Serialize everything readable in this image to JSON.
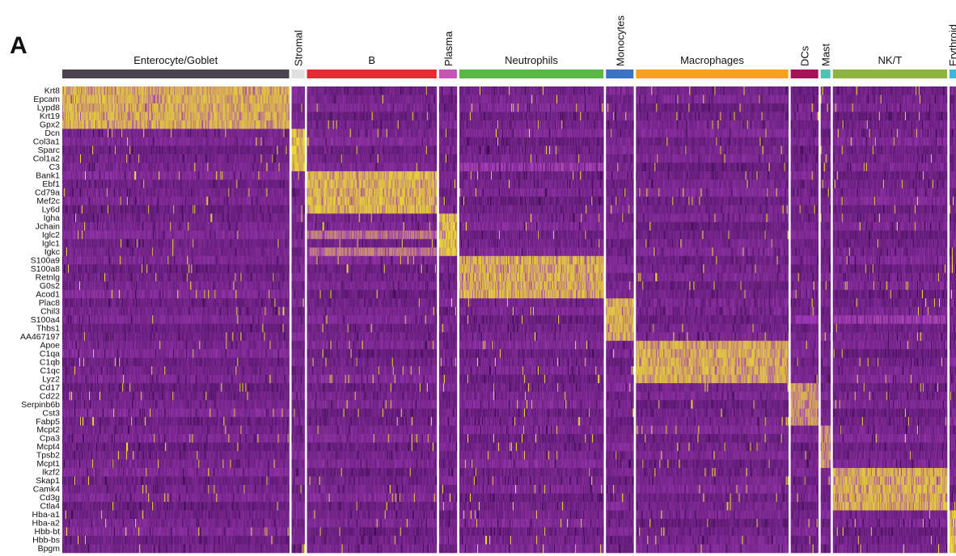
{
  "panel_label": "A",
  "chart_data": {
    "type": "heatmap",
    "title": "",
    "xlabel": "",
    "ylabel": "",
    "legend": "none",
    "groups": [
      {
        "name": "Enterocyte/Goblet",
        "color": "#4b4350",
        "cells": 280
      },
      {
        "name": "Stromal",
        "color": "#e0e0e0",
        "cells": 16
      },
      {
        "name": "B",
        "color": "#e32b31",
        "cells": 160
      },
      {
        "name": "Plasma",
        "color": "#c455b5",
        "cells": 22
      },
      {
        "name": "Neutrophils",
        "color": "#5cb844",
        "cells": 178
      },
      {
        "name": "Monocytes",
        "color": "#3a73c4",
        "cells": 34
      },
      {
        "name": "Macrophages",
        "color": "#f7a11f",
        "cells": 188
      },
      {
        "name": "DCs",
        "color": "#a5135a",
        "cells": 34
      },
      {
        "name": "Mast",
        "color": "#4ec3b3",
        "cells": 12
      },
      {
        "name": "NK/T",
        "color": "#8db340",
        "cells": 141
      },
      {
        "name": "Erythroid",
        "color": "#3fb6d6",
        "cells": 8
      }
    ],
    "genes": [
      "Krt8",
      "Epcam",
      "Lypd8",
      "Krt19",
      "Gpx2",
      "Dcn",
      "Col3a1",
      "Sparc",
      "Col1a2",
      "C3",
      "Bank1",
      "Ebf1",
      "Cd79a",
      "Mef2c",
      "Ly6d",
      "Igha",
      "Jchain",
      "Iglc2",
      "Iglc1",
      "Igkc",
      "S100a9",
      "S100a8",
      "Retnlg",
      "G0s2",
      "Acod1",
      "Plac8",
      "Chil3",
      "S100a4",
      "Thbs1",
      "AA467197",
      "Apoe",
      "C1qa",
      "C1qb",
      "C1qc",
      "Lyz2",
      "Cd17",
      "Cd22",
      "Serpinb6b",
      "Cst3",
      "Fabp5",
      "Mcpt2",
      "Cpa3",
      "Mcpt4",
      "Tpsb2",
      "Mcpt1",
      "Ikzf2",
      "Skap1",
      "Camk4",
      "Cd3g",
      "Ctla4",
      "Hba-a1",
      "Hba-a2",
      "Hbb-bt",
      "Hbb-bs",
      "Bpgm"
    ],
    "marker_blocks": [
      {
        "group": "Enterocyte/Goblet",
        "genes": [
          "Krt8",
          "Epcam",
          "Lypd8",
          "Krt19",
          "Gpx2"
        ],
        "level": 0.9
      },
      {
        "group": "Stromal",
        "genes": [
          "Dcn",
          "Col3a1",
          "Sparc",
          "Col1a2",
          "C3"
        ],
        "level": 0.95
      },
      {
        "group": "B",
        "genes": [
          "Bank1",
          "Ebf1",
          "Cd79a",
          "Mef2c",
          "Ly6d"
        ],
        "level": 0.92
      },
      {
        "group": "Plasma",
        "genes": [
          "Igha",
          "Jchain",
          "Iglc2",
          "Iglc1",
          "Igkc"
        ],
        "level": 0.95
      },
      {
        "group": "Neutrophils",
        "genes": [
          "S100a9",
          "S100a8",
          "Retnlg",
          "G0s2",
          "Acod1"
        ],
        "level": 0.9
      },
      {
        "group": "Monocytes",
        "genes": [
          "Plac8",
          "Chil3",
          "S100a4",
          "Thbs1",
          "AA467197"
        ],
        "level": 0.9
      },
      {
        "group": "Macrophages",
        "genes": [
          "Apoe",
          "C1qa",
          "C1qb",
          "C1qc",
          "Lyz2"
        ],
        "level": 0.9
      },
      {
        "group": "DCs",
        "genes": [
          "Cd17",
          "Cd22",
          "Serpinb6b",
          "Cst3",
          "Fabp5"
        ],
        "level": 0.85
      },
      {
        "group": "Mast",
        "genes": [
          "Mcpt2",
          "Cpa3",
          "Mcpt4",
          "Tpsb2",
          "Mcpt1"
        ],
        "level": 0.85
      },
      {
        "group": "NK/T",
        "genes": [
          "Ikzf2",
          "Skap1",
          "Camk4",
          "Cd3g",
          "Ctla4"
        ],
        "level": 0.9
      },
      {
        "group": "Erythroid",
        "genes": [
          "Hba-a1",
          "Hba-a2",
          "Hbb-bt",
          "Hbb-bs",
          "Bpgm"
        ],
        "level": 0.95
      }
    ],
    "secondary_expression": [
      {
        "group": "B",
        "genes": [
          "Iglc2",
          "Igkc"
        ],
        "level": 0.75
      },
      {
        "group": "Neutrophils",
        "genes": [
          "C3"
        ],
        "level": 0.55
      },
      {
        "group": "Macrophages",
        "genes": [
          "Plac8",
          "Chil3"
        ],
        "level": 0.4
      },
      {
        "group": "DCs",
        "genes": [
          "S100a4"
        ],
        "level": 0.5
      },
      {
        "group": "NK/T",
        "genes": [
          "S100a4"
        ],
        "level": 0.55
      }
    ],
    "colors": {
      "low": "#3d0a52",
      "mid": "#a13ab7",
      "high": "#f5f01e",
      "separator": "#ffffff"
    }
  }
}
